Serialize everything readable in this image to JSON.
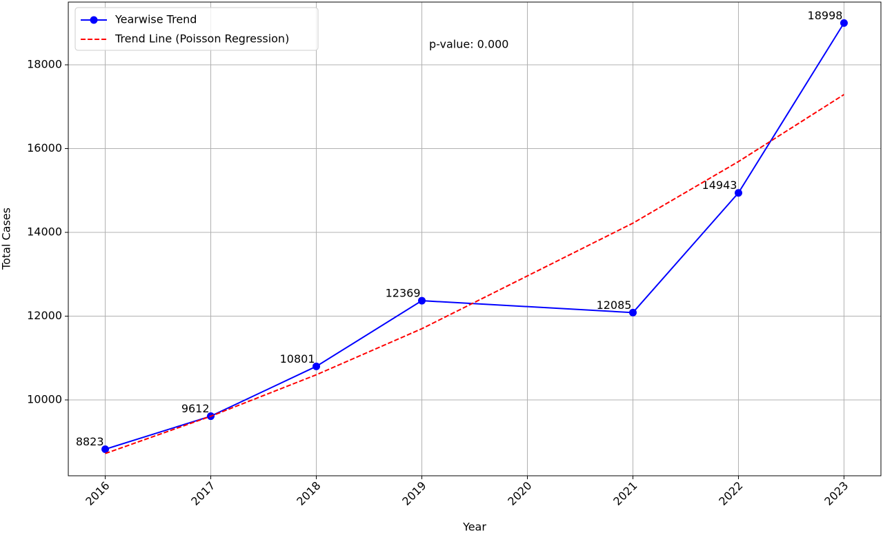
{
  "chart_data": {
    "type": "line",
    "x_label": "Year",
    "y_label": "Total Cases",
    "annotation": "p-value: 0.000",
    "x": [
      2016,
      2017,
      2018,
      2019,
      2021,
      2022,
      2023
    ],
    "series": [
      {
        "name": "Yearwise Trend",
        "color": "#0000ff",
        "style": "solid",
        "marker": true,
        "values": [
          8823,
          9612,
          10801,
          12369,
          12085,
          14943,
          18998
        ]
      },
      {
        "name": "Trend Line (Poisson Regression)",
        "color": "#ff0000",
        "style": "dashed",
        "marker": false,
        "values": [
          8720,
          9610,
          10600,
          11700,
          14220,
          15690,
          17290
        ]
      }
    ],
    "xlim": [
      2015.65,
      2023.35
    ],
    "xticks": [
      2016,
      2017,
      2018,
      2019,
      2020,
      2021,
      2022,
      2023
    ],
    "ylim": [
      8189,
      19498
    ],
    "yticks": [
      10000,
      12000,
      14000,
      16000,
      18000
    ],
    "grid": true,
    "legend": "upper-left",
    "data_labels": true
  }
}
